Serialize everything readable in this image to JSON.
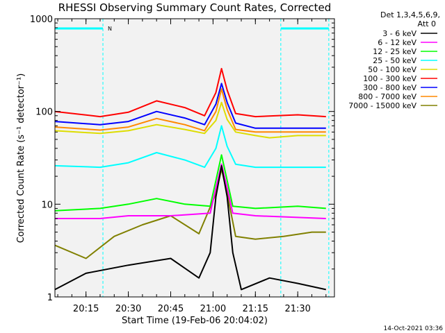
{
  "chart_data": {
    "type": "line",
    "title": "RHESSI Observing Summary Count Rates, Corrected",
    "xlabel": "Start Time (19-Feb-06 20:04:02)",
    "ylabel": "Corrected Count Rate (s⁻¹ detector⁻¹)",
    "y_scale": "log",
    "ylim": [
      1,
      1000
    ],
    "y_ticks": [
      "1",
      "10",
      "100",
      "1000"
    ],
    "x_range_minutes": [
      "20:04",
      "21:43"
    ],
    "x_ticks": [
      "20:15",
      "20:30",
      "20:45",
      "21:00",
      "21:15",
      "21:30"
    ],
    "legend_header": [
      "Det 1,3,4,5,6,9,",
      "Att 0"
    ],
    "legend_position": "right",
    "night_intervals": [
      [
        "20:04",
        "20:21"
      ],
      [
        "21:24",
        "21:41"
      ]
    ],
    "night_bar_marker": "N",
    "series": [
      {
        "name": "3 - 6 keV",
        "color": "#000000",
        "points": [
          [
            "20:04",
            1.2
          ],
          [
            "20:15",
            1.8
          ],
          [
            "20:30",
            2.2
          ],
          [
            "20:45",
            2.6
          ],
          [
            "20:55",
            1.6
          ],
          [
            "20:59",
            3
          ],
          [
            "21:01",
            12
          ],
          [
            "21:03",
            26
          ],
          [
            "21:05",
            12
          ],
          [
            "21:07",
            3
          ],
          [
            "21:10",
            1.2
          ],
          [
            "21:20",
            1.6
          ],
          [
            "21:30",
            1.4
          ],
          [
            "21:40",
            1.2
          ]
        ]
      },
      {
        "name": "6 - 12 keV",
        "color": "#ff00ff",
        "points": [
          [
            "20:04",
            7
          ],
          [
            "20:20",
            7
          ],
          [
            "20:30",
            7.5
          ],
          [
            "20:45",
            7.5
          ],
          [
            "20:59",
            8
          ],
          [
            "21:01",
            15
          ],
          [
            "21:03",
            27
          ],
          [
            "21:05",
            15
          ],
          [
            "21:07",
            8
          ],
          [
            "21:15",
            7.5
          ],
          [
            "21:30",
            7.2
          ],
          [
            "21:40",
            7
          ]
        ]
      },
      {
        "name": "12 - 25 keV",
        "color": "#00ff00",
        "points": [
          [
            "20:04",
            8.5
          ],
          [
            "20:20",
            9
          ],
          [
            "20:30",
            10
          ],
          [
            "20:40",
            11.5
          ],
          [
            "20:50",
            10
          ],
          [
            "20:59",
            9.5
          ],
          [
            "21:01",
            18
          ],
          [
            "21:03",
            34
          ],
          [
            "21:05",
            18
          ],
          [
            "21:07",
            9.5
          ],
          [
            "21:15",
            9
          ],
          [
            "21:30",
            9.5
          ],
          [
            "21:40",
            9
          ]
        ]
      },
      {
        "name": "25 - 50 keV",
        "color": "#00ffff",
        "points": [
          [
            "20:04",
            26
          ],
          [
            "20:20",
            25
          ],
          [
            "20:30",
            28
          ],
          [
            "20:40",
            36
          ],
          [
            "20:50",
            30
          ],
          [
            "20:57",
            25
          ],
          [
            "21:01",
            40
          ],
          [
            "21:03",
            70
          ],
          [
            "21:05",
            42
          ],
          [
            "21:08",
            27
          ],
          [
            "21:15",
            25
          ],
          [
            "21:30",
            25
          ],
          [
            "21:40",
            25
          ]
        ]
      },
      {
        "name": "50 - 100 keV",
        "color": "#dddd00",
        "points": [
          [
            "20:04",
            62
          ],
          [
            "20:20",
            58
          ],
          [
            "20:30",
            62
          ],
          [
            "20:40",
            72
          ],
          [
            "20:50",
            64
          ],
          [
            "20:57",
            58
          ],
          [
            "21:01",
            80
          ],
          [
            "21:03",
            125
          ],
          [
            "21:05",
            82
          ],
          [
            "21:08",
            60
          ],
          [
            "21:15",
            55
          ],
          [
            "21:20",
            52
          ],
          [
            "21:30",
            55
          ],
          [
            "21:40",
            55
          ]
        ]
      },
      {
        "name": "100 - 300 keV",
        "color": "#ff0000",
        "points": [
          [
            "20:04",
            100
          ],
          [
            "20:20",
            88
          ],
          [
            "20:30",
            98
          ],
          [
            "20:40",
            130
          ],
          [
            "20:50",
            110
          ],
          [
            "20:57",
            90
          ],
          [
            "21:01",
            160
          ],
          [
            "21:03",
            290
          ],
          [
            "21:05",
            170
          ],
          [
            "21:08",
            95
          ],
          [
            "21:15",
            88
          ],
          [
            "21:30",
            92
          ],
          [
            "21:40",
            88
          ]
        ]
      },
      {
        "name": "300 - 800 keV",
        "color": "#0000ff",
        "points": [
          [
            "20:04",
            78
          ],
          [
            "20:20",
            72
          ],
          [
            "20:30",
            78
          ],
          [
            "20:40",
            100
          ],
          [
            "20:50",
            85
          ],
          [
            "20:57",
            72
          ],
          [
            "21:01",
            120
          ],
          [
            "21:03",
            200
          ],
          [
            "21:05",
            125
          ],
          [
            "21:08",
            75
          ],
          [
            "21:15",
            66
          ],
          [
            "21:30",
            66
          ],
          [
            "21:40",
            66
          ]
        ]
      },
      {
        "name": "800 - 7000 keV",
        "color": "#ff8800",
        "points": [
          [
            "20:04",
            68
          ],
          [
            "20:20",
            63
          ],
          [
            "20:30",
            68
          ],
          [
            "20:40",
            84
          ],
          [
            "20:50",
            72
          ],
          [
            "20:57",
            62
          ],
          [
            "21:01",
            100
          ],
          [
            "21:03",
            175
          ],
          [
            "21:05",
            105
          ],
          [
            "21:08",
            64
          ],
          [
            "21:15",
            60
          ],
          [
            "21:30",
            60
          ],
          [
            "21:40",
            60
          ]
        ]
      },
      {
        "name": "7000 - 15000 keV",
        "color": "#808000",
        "points": [
          [
            "20:04",
            3.6
          ],
          [
            "20:15",
            2.6
          ],
          [
            "20:25",
            4.5
          ],
          [
            "20:35",
            6
          ],
          [
            "20:45",
            7.5
          ],
          [
            "20:55",
            4.8
          ],
          [
            "21:01",
            13
          ],
          [
            "21:03",
            24
          ],
          [
            "21:05",
            13
          ],
          [
            "21:08",
            4.5
          ],
          [
            "21:15",
            4.2
          ],
          [
            "21:25",
            4.5
          ],
          [
            "21:35",
            5
          ],
          [
            "21:40",
            5
          ]
        ]
      }
    ]
  },
  "footer": {
    "timestamp": "14-Oct-2021 03:36"
  }
}
